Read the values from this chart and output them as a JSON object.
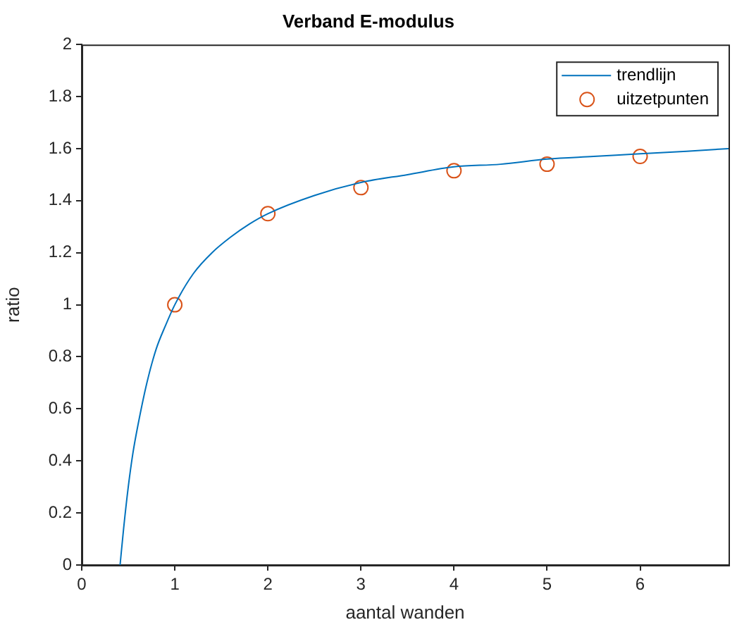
{
  "chart_data": {
    "type": "line",
    "title": "Verband E-modulus",
    "xlabel": "aantal wanden",
    "ylabel": "ratio",
    "xlim": [
      0,
      6.95
    ],
    "xticks": [
      0,
      1,
      2,
      3,
      4,
      5,
      6
    ],
    "ylim": [
      0,
      2
    ],
    "yticks": [
      0,
      0.2,
      0.4,
      0.6,
      0.8,
      1,
      1.2,
      1.4,
      1.6,
      1.8,
      2
    ],
    "grid": false,
    "legend": "top right",
    "series": [
      {
        "name": "trendlijn",
        "type": "line",
        "color": "#0072bd",
        "marker": "none",
        "line_style": "solid",
        "x": [
          0.412,
          0.45,
          0.5,
          0.55,
          0.6,
          0.7,
          0.8,
          0.9,
          1,
          1.2,
          1.4,
          1.6,
          1.8,
          2,
          2.5,
          3,
          3.5,
          4,
          4.5,
          5,
          5.5,
          6,
          6.5,
          6.95
        ],
        "values": [
          0,
          0.14,
          0.3,
          0.43,
          0.53,
          0.7,
          0.83,
          0.92,
          1,
          1.12,
          1.2,
          1.26,
          1.31,
          1.35,
          1.42,
          1.47,
          1.5,
          1.53,
          1.54,
          1.56,
          1.57,
          1.58,
          1.59,
          1.6
        ]
      },
      {
        "name": "uitzetpunten",
        "type": "scatter",
        "color": "#d95319",
        "marker": "circle",
        "x": [
          1,
          2,
          3,
          4,
          5,
          6
        ],
        "values": [
          1,
          1.35,
          1.45,
          1.515,
          1.54,
          1.57
        ]
      }
    ]
  }
}
